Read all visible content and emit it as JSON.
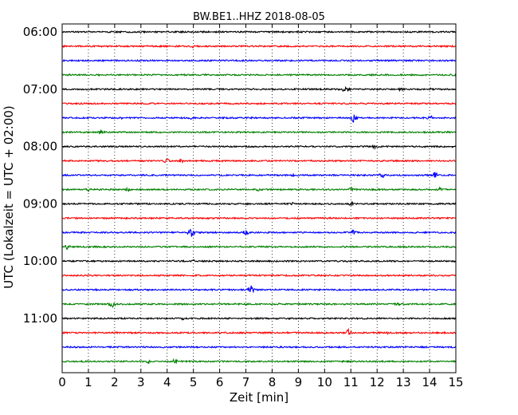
{
  "chart_data": {
    "type": "line",
    "title": "BW.BE1..HHZ 2018-08-05",
    "xlabel": "Zeit  [min]",
    "ylabel": "UTC (Lokalzeit = UTC + 02:00)",
    "xlim": [
      0,
      15
    ],
    "xticks": [
      "0",
      "1",
      "2",
      "3",
      "4",
      "5",
      "6",
      "7",
      "8",
      "9",
      "10",
      "11",
      "12",
      "13",
      "14",
      "15"
    ],
    "yticks": [
      "06:00",
      "07:00",
      "08:00",
      "09:00",
      "10:00",
      "11:00"
    ],
    "grid": "vertical dotted",
    "trace_interval_min": 15,
    "colors": [
      "#000000",
      "#ff0000",
      "#0000ff",
      "#008000"
    ],
    "traces": [
      {
        "start": "06:00",
        "color": "#000000",
        "events": []
      },
      {
        "start": "06:15",
        "color": "#ff0000",
        "events": [
          [
            5.0,
            2.5
          ]
        ]
      },
      {
        "start": "06:30",
        "color": "#0000ff",
        "events": []
      },
      {
        "start": "06:45",
        "color": "#008000",
        "events": [
          [
            15.0,
            3
          ]
        ]
      },
      {
        "start": "07:00",
        "color": "#000000",
        "events": [
          [
            1.0,
            2
          ],
          [
            10.8,
            6
          ],
          [
            12.9,
            2.5
          ],
          [
            14.0,
            2
          ]
        ]
      },
      {
        "start": "07:15",
        "color": "#ff0000",
        "events": []
      },
      {
        "start": "07:30",
        "color": "#0000ff",
        "events": [
          [
            2.2,
            3
          ],
          [
            4.9,
            2
          ],
          [
            11.1,
            6
          ],
          [
            14.0,
            5
          ]
        ]
      },
      {
        "start": "07:45",
        "color": "#008000",
        "events": [
          [
            1.5,
            4
          ]
        ]
      },
      {
        "start": "08:00",
        "color": "#000000",
        "events": [
          [
            11.9,
            3
          ],
          [
            14.9,
            2
          ]
        ]
      },
      {
        "start": "08:15",
        "color": "#ff0000",
        "events": [
          [
            4.0,
            5
          ],
          [
            4.5,
            4
          ]
        ]
      },
      {
        "start": "08:30",
        "color": "#0000ff",
        "events": [
          [
            8.8,
            2
          ],
          [
            12.2,
            4
          ],
          [
            14.2,
            5
          ]
        ]
      },
      {
        "start": "08:45",
        "color": "#008000",
        "events": [
          [
            1.0,
            3
          ],
          [
            2.5,
            3
          ],
          [
            7.5,
            3
          ],
          [
            11.0,
            3
          ],
          [
            14.4,
            3
          ]
        ]
      },
      {
        "start": "09:00",
        "color": "#000000",
        "events": [
          [
            8.8,
            2
          ],
          [
            11.0,
            4
          ]
        ]
      },
      {
        "start": "09:15",
        "color": "#ff0000",
        "events": []
      },
      {
        "start": "09:30",
        "color": "#0000ff",
        "events": [
          [
            4.9,
            8
          ],
          [
            7.0,
            5
          ],
          [
            11.1,
            4
          ],
          [
            15.0,
            2
          ]
        ]
      },
      {
        "start": "09:45",
        "color": "#008000",
        "events": [
          [
            0.2,
            4
          ]
        ]
      },
      {
        "start": "10:00",
        "color": "#000000",
        "events": [
          [
            5.0,
            2
          ]
        ]
      },
      {
        "start": "10:15",
        "color": "#ff0000",
        "events": []
      },
      {
        "start": "10:30",
        "color": "#0000ff",
        "events": [
          [
            7.2,
            6
          ]
        ]
      },
      {
        "start": "10:45",
        "color": "#008000",
        "events": [
          [
            1.9,
            5
          ],
          [
            8.3,
            2
          ],
          [
            12.8,
            4
          ]
        ]
      },
      {
        "start": "11:00",
        "color": "#000000",
        "events": [
          [
            4.6,
            2
          ]
        ]
      },
      {
        "start": "11:15",
        "color": "#ff0000",
        "events": [
          [
            10.9,
            6
          ],
          [
            12.4,
            2
          ]
        ]
      },
      {
        "start": "11:30",
        "color": "#0000ff",
        "events": []
      },
      {
        "start": "11:45",
        "color": "#008000",
        "events": [
          [
            3.3,
            3
          ],
          [
            4.3,
            5
          ]
        ]
      }
    ]
  }
}
